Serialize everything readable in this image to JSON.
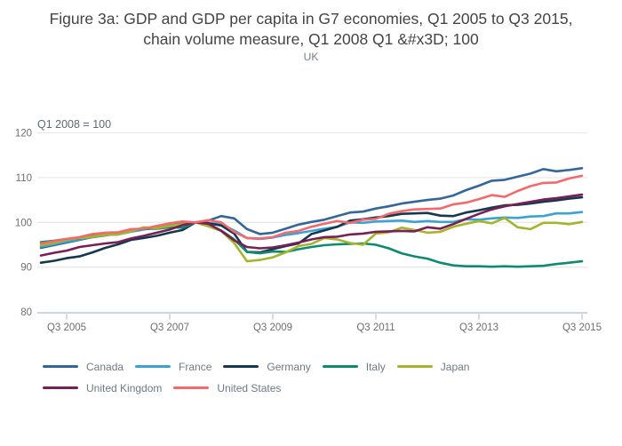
{
  "title": {
    "line1": "Figure 3a: GDP and GDP per capita in G7 economies, Q1 2005 to Q3 2015,",
    "line2": "chain volume measure, Q1 2008 Q1 &#x3D; 100"
  },
  "subtitle": "UK",
  "chart_data": {
    "type": "line",
    "annotation": "Q1 2008 = 100",
    "x_start": "Q1 2005",
    "x_end": "Q3 2015",
    "x_frequency": "quarterly",
    "x_tick_labels": [
      "Q3 2005",
      "Q3 2007",
      "Q3 2009",
      "Q3 2011",
      "Q3 2013",
      "Q3 2015"
    ],
    "x_tick_indices": [
      2,
      10,
      18,
      26,
      34,
      42
    ],
    "y_ticks": [
      80,
      90,
      100,
      110,
      120
    ],
    "ylim": [
      80,
      120
    ],
    "grid": true,
    "legend_position": "bottom-left",
    "series": [
      {
        "name": "Canada",
        "color": "#336699",
        "values": [
          94.3,
          94.9,
          95.5,
          96.1,
          96.7,
          97.1,
          97.5,
          98.0,
          98.5,
          99.0,
          99.5,
          99.9,
          100.0,
          100.4,
          101.4,
          100.9,
          98.5,
          97.4,
          97.7,
          98.6,
          99.5,
          100.1,
          100.6,
          101.4,
          102.2,
          102.4,
          103.1,
          103.6,
          104.2,
          104.6,
          105.0,
          105.3,
          106.0,
          107.2,
          108.2,
          109.3,
          109.5,
          110.2,
          110.9,
          111.9,
          111.4,
          111.7,
          112.1
        ]
      },
      {
        "name": "France",
        "color": "#3aa3d4",
        "values": [
          94.6,
          95.1,
          95.7,
          96.2,
          96.8,
          97.2,
          97.3,
          97.9,
          98.4,
          98.9,
          99.3,
          99.6,
          100.0,
          99.8,
          99.6,
          98.2,
          96.5,
          96.3,
          96.6,
          97.2,
          97.6,
          98.1,
          98.6,
          99.0,
          100.0,
          99.9,
          100.2,
          100.3,
          100.4,
          100.1,
          100.3,
          100.1,
          100.1,
          100.7,
          100.6,
          100.9,
          101.1,
          101.0,
          101.3,
          101.4,
          102.0,
          102.0,
          102.3
        ]
      },
      {
        "name": "Germany",
        "color": "#16384e",
        "values": [
          91.0,
          91.4,
          92.0,
          92.4,
          93.3,
          94.3,
          95.1,
          96.1,
          96.5,
          97.0,
          97.7,
          98.3,
          100.0,
          99.8,
          99.3,
          97.5,
          93.4,
          93.3,
          94.0,
          94.7,
          95.3,
          97.4,
          98.2,
          99.0,
          100.4,
          100.7,
          101.1,
          101.4,
          101.9,
          102.0,
          102.1,
          101.5,
          101.4,
          102.2,
          102.7,
          103.3,
          103.8,
          103.9,
          104.2,
          104.6,
          104.9,
          105.3,
          105.6
        ]
      },
      {
        "name": "Italy",
        "color": "#0e8a70",
        "values": [
          95.6,
          95.9,
          96.3,
          96.4,
          97.0,
          97.3,
          97.5,
          98.3,
          98.6,
          98.6,
          98.9,
          98.8,
          100.0,
          99.4,
          98.2,
          96.2,
          93.4,
          93.1,
          93.5,
          93.4,
          94.0,
          94.5,
          94.9,
          95.1,
          95.2,
          95.3,
          95.0,
          94.2,
          93.1,
          92.4,
          91.9,
          91.0,
          90.4,
          90.2,
          90.2,
          90.1,
          90.2,
          90.1,
          90.2,
          90.3,
          90.7,
          91.0,
          91.3
        ]
      },
      {
        "name": "Japan",
        "color": "#a6b42b",
        "values": [
          94.9,
          95.4,
          96.1,
          96.5,
          96.8,
          97.2,
          97.3,
          98.0,
          98.9,
          98.7,
          99.2,
          99.6,
          100.0,
          99.1,
          98.1,
          95.4,
          91.3,
          91.6,
          92.2,
          93.3,
          94.7,
          95.2,
          96.5,
          96.2,
          95.4,
          95.0,
          97.5,
          97.8,
          98.8,
          98.3,
          97.7,
          97.9,
          99.0,
          99.7,
          100.3,
          99.8,
          101.0,
          98.9,
          98.5,
          99.9,
          99.9,
          99.6,
          100.1
        ]
      },
      {
        "name": "United Kingdom",
        "color": "#7a1e56",
        "values": [
          92.6,
          93.2,
          93.7,
          94.5,
          94.9,
          95.3,
          95.6,
          96.4,
          97.0,
          97.7,
          98.4,
          99.4,
          100.0,
          99.7,
          98.1,
          96.0,
          94.5,
          94.2,
          94.4,
          94.9,
          95.5,
          96.2,
          96.7,
          96.8,
          97.3,
          97.5,
          97.9,
          98.0,
          98.1,
          98.0,
          98.9,
          98.6,
          99.6,
          100.8,
          101.9,
          102.9,
          103.6,
          104.1,
          104.6,
          105.1,
          105.4,
          105.8,
          106.2
        ]
      },
      {
        "name": "United States",
        "color": "#f4696b",
        "values": [
          95.3,
          95.8,
          96.3,
          96.7,
          97.4,
          97.7,
          97.8,
          98.5,
          98.6,
          99.2,
          99.8,
          100.2,
          100.0,
          100.5,
          100.0,
          97.9,
          96.5,
          96.4,
          96.7,
          97.7,
          98.1,
          99.0,
          99.7,
          100.3,
          99.9,
          100.6,
          100.8,
          101.9,
          102.5,
          102.9,
          103.0,
          103.1,
          104.0,
          104.4,
          105.2,
          106.1,
          105.7,
          107.0,
          108.1,
          108.8,
          108.9,
          109.8,
          110.4
        ]
      }
    ],
    "style": {
      "grid_color": "#e9e9e9",
      "axis_line_color": "#c8d4e2",
      "tick_color": "#b9c6d2",
      "axis_label_color": "#6e6e6e",
      "annotation_color": "#5f6a73"
    }
  }
}
